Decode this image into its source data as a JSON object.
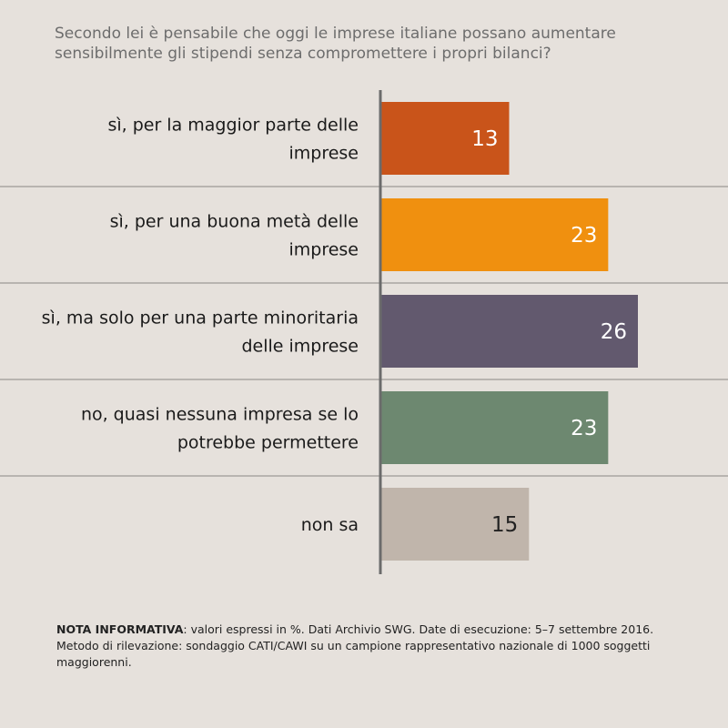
{
  "question": "Secondo lei è pensabile che oggi le imprese italiane possano aumentare sensibilmente gli stipendi senza compromettere i propri bilanci?",
  "note": {
    "label": "NOTA INFORMATIVA",
    "text": ": valori espressi in %. Dati Archivio SWG. Date di esecuzione: 5–7 settembre 2016. Metodo di rilevazione: sondaggio CATI/CAWI su un campione rappresentativo nazionale di 1000 soggetti maggiorenni."
  },
  "chart_data": {
    "type": "bar",
    "orientation": "horizontal",
    "categories": [
      [
        "sì, per la maggior parte delle",
        "imprese"
      ],
      [
        "sì, per una buona metà delle",
        "imprese"
      ],
      [
        "sì, ma solo per una parte minoritaria",
        "delle imprese"
      ],
      [
        "no, quasi nessuna impresa se lo",
        "potrebbe permettere"
      ],
      [
        "non sa"
      ]
    ],
    "values": [
      13,
      23,
      26,
      23,
      15
    ],
    "colors": [
      "#c9541a",
      "#f0900f",
      "#62596e",
      "#6d8870",
      "#c0b5ab"
    ],
    "value_label_colors": [
      "#ffffff",
      "#ffffff",
      "#ffffff",
      "#ffffff",
      "#222222"
    ],
    "xlim": [
      0,
      26
    ],
    "grid": false,
    "legend": "none"
  }
}
